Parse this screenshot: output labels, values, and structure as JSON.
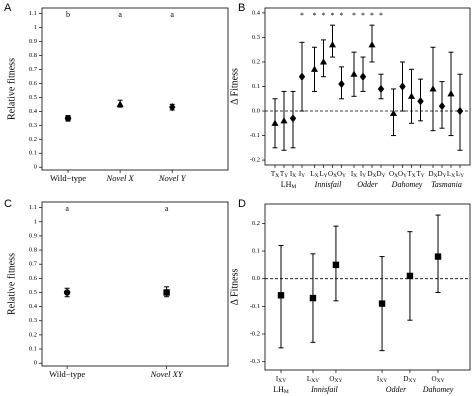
{
  "chart_data": [
    {
      "type": "dot",
      "panel": "A",
      "ylabel": "Relative fitness",
      "categories": [
        "Wild−type",
        "Novel X",
        "Novel Y"
      ],
      "italic": [
        false,
        true,
        true
      ],
      "values": [
        0.35,
        0.45,
        0.43
      ],
      "lower": [
        0.33,
        0.43,
        0.41
      ],
      "upper": [
        0.37,
        0.48,
        0.45
      ],
      "markers": [
        "circle",
        "triangle",
        "diamond"
      ],
      "letters": [
        "b",
        "a",
        "a"
      ],
      "ylim": [
        -0.02,
        1.14
      ],
      "yticks": [
        0,
        0.1,
        0.2,
        0.3,
        0.4,
        0.5,
        0.6,
        0.7,
        0.8,
        0.9,
        1,
        1.1
      ]
    },
    {
      "type": "dot",
      "panel": "B",
      "ylabel": "Δ Fitness",
      "zero_line": true,
      "categories": [
        {
          "base": "T",
          "sub": "X"
        },
        {
          "base": "T",
          "sub": "Y"
        },
        {
          "base": "I",
          "sub": "X"
        },
        {
          "base": "I",
          "sub": "Y"
        },
        {
          "base": "L",
          "sub": "X"
        },
        {
          "base": "L",
          "sub": "Y"
        },
        {
          "base": "O",
          "sub": "X"
        },
        {
          "base": "O",
          "sub": "Y"
        },
        {
          "base": "I",
          "sub": "X"
        },
        {
          "base": "I",
          "sub": "Y"
        },
        {
          "base": "D",
          "sub": "X"
        },
        {
          "base": "D",
          "sub": "Y"
        },
        {
          "base": "O",
          "sub": "X"
        },
        {
          "base": "O",
          "sub": "Y"
        },
        {
          "base": "T",
          "sub": "X"
        },
        {
          "base": "T",
          "sub": "Y"
        },
        {
          "base": "D",
          "sub": "X"
        },
        {
          "base": "D",
          "sub": "Y"
        },
        {
          "base": "L",
          "sub": "X"
        },
        {
          "base": "L",
          "sub": "Y"
        }
      ],
      "groups": [
        {
          "base": "LH",
          "sub": "M",
          "count": 4
        },
        {
          "base": "Innisfail",
          "count": 4
        },
        {
          "base": "Odder",
          "count": 4
        },
        {
          "base": "Dahomey",
          "count": 4
        },
        {
          "base": "Tasmania",
          "count": 4
        }
      ],
      "values": [
        -0.05,
        -0.04,
        -0.03,
        0.14,
        0.17,
        0.2,
        0.27,
        0.11,
        0.15,
        0.14,
        0.27,
        0.09,
        -0.01,
        0.1,
        0.06,
        0.04,
        0.09,
        0.02,
        0.07,
        0.0
      ],
      "lower": [
        -0.15,
        -0.16,
        -0.15,
        0.0,
        0.08,
        0.14,
        0.22,
        0.05,
        0.06,
        0.08,
        0.2,
        0.05,
        -0.1,
        0.0,
        -0.05,
        -0.04,
        -0.08,
        -0.07,
        -0.1,
        -0.16
      ],
      "upper": [
        0.05,
        0.08,
        0.08,
        0.28,
        0.26,
        0.29,
        0.35,
        0.18,
        0.24,
        0.22,
        0.35,
        0.15,
        0.09,
        0.2,
        0.17,
        0.13,
        0.26,
        0.12,
        0.24,
        0.15
      ],
      "markers": [
        "triangle",
        "triangle",
        "diamond",
        "diamond",
        "triangle",
        "triangle",
        "triangle",
        "diamond",
        "triangle",
        "diamond",
        "triangle",
        "diamond",
        "triangle",
        "diamond",
        "triangle",
        "diamond",
        "triangle",
        "diamond",
        "triangle",
        "diamond"
      ],
      "significance": [
        null,
        null,
        null,
        "*",
        "*",
        "*",
        "*",
        "*",
        "*",
        "*",
        "*",
        "*",
        null,
        null,
        null,
        null,
        null,
        null,
        null,
        null
      ],
      "ylim": [
        -0.22,
        0.42
      ],
      "yticks": [
        -0.2,
        -0.1,
        {
          "value": 0,
          "label": "0.0"
        },
        0.1,
        0.2,
        0.3,
        0.4
      ]
    },
    {
      "type": "dot",
      "panel": "C",
      "ylabel": "Relative fitness",
      "categories": [
        "Wild−type",
        "Novel XY"
      ],
      "italic": [
        false,
        true
      ],
      "values": [
        0.5,
        0.5
      ],
      "lower": [
        0.47,
        0.47
      ],
      "upper": [
        0.53,
        0.54
      ],
      "markers": [
        "circle",
        "square"
      ],
      "letters": [
        "a",
        "a"
      ],
      "ylim": [
        -0.02,
        1.14
      ],
      "yticks": [
        0,
        0.1,
        0.2,
        0.3,
        0.4,
        0.5,
        0.6,
        0.7,
        0.8,
        0.9,
        1,
        1.1
      ]
    },
    {
      "type": "dot",
      "panel": "D",
      "ylabel": "Δ Fitness",
      "zero_line": true,
      "categories": [
        {
          "base": "I",
          "sub": "XY"
        },
        {
          "base": "L",
          "sub": "XY"
        },
        {
          "base": "O",
          "sub": "XY"
        },
        {
          "base": "I",
          "sub": "XY"
        },
        {
          "base": "D",
          "sub": "XY"
        },
        {
          "base": "O",
          "sub": "XY"
        }
      ],
      "groups": [
        {
          "base": "LH",
          "sub": "M",
          "count": 1
        },
        {
          "base": "Innisfail",
          "count": 2
        },
        {
          "base": "Odder",
          "count": 2
        },
        {
          "base": "Dahomey",
          "count": 1
        }
      ],
      "values": [
        -0.06,
        -0.07,
        0.05,
        -0.09,
        0.01,
        0.08
      ],
      "lower": [
        -0.25,
        -0.23,
        -0.08,
        -0.26,
        -0.15,
        -0.05
      ],
      "upper": [
        0.12,
        0.09,
        0.19,
        0.08,
        0.17,
        0.23
      ],
      "markers": [
        "square",
        "square",
        "square",
        "square",
        "square",
        "square"
      ],
      "ylim": [
        -0.33,
        0.27
      ],
      "yticks": [
        -0.3,
        -0.2,
        -0.1,
        {
          "value": 0,
          "label": "0.0"
        },
        0.1,
        0.2
      ]
    }
  ]
}
